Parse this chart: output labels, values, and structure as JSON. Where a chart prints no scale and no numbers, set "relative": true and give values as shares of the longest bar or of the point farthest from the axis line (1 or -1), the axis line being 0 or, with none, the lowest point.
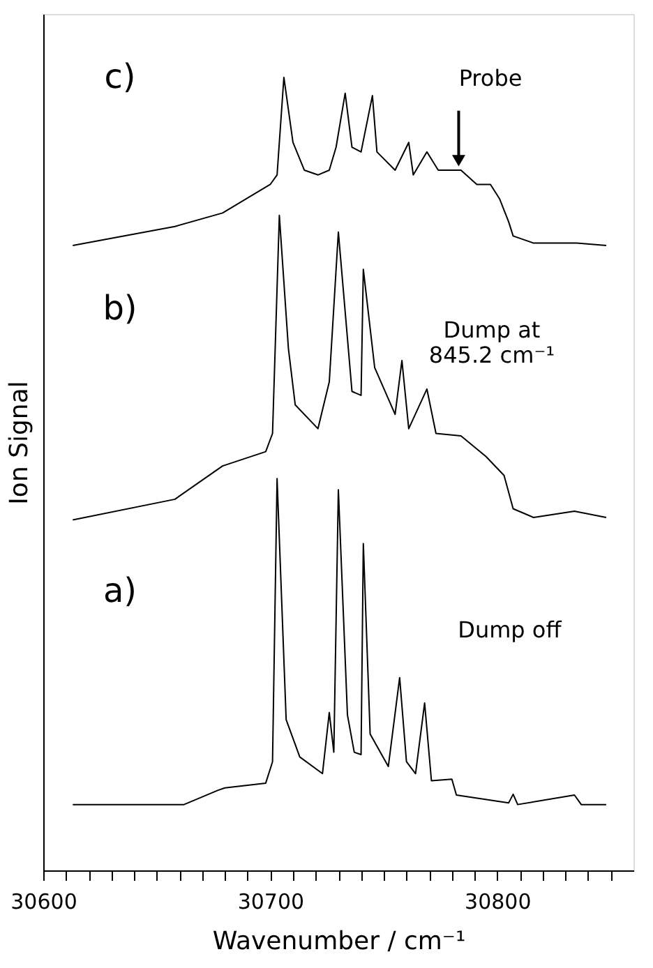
{
  "chart_data": {
    "type": "line",
    "relative": true,
    "xlabel": "Wavenumber / cm⁻¹",
    "ylabel": "Ion Signal",
    "xlim": [
      30600,
      30860
    ],
    "xticks": [
      30600,
      {
        "value": 30610,
        "label": null
      },
      {
        "value": 30620,
        "label": null
      },
      {
        "value": 30630,
        "label": null
      },
      {
        "value": 30640,
        "label": null
      },
      {
        "value": 30650,
        "label": null
      },
      {
        "value": 30660,
        "label": null
      },
      {
        "value": 30670,
        "label": null
      },
      {
        "value": 30680,
        "label": null
      },
      {
        "value": 30690,
        "label": null
      },
      30700,
      {
        "value": 30710,
        "label": null
      },
      {
        "value": 30720,
        "label": null
      },
      {
        "value": 30730,
        "label": null
      },
      {
        "value": 30740,
        "label": null
      },
      {
        "value": 30750,
        "label": null
      },
      {
        "value": 30760,
        "label": null
      },
      {
        "value": 30770,
        "label": null
      },
      {
        "value": 30780,
        "label": null
      },
      {
        "value": 30790,
        "label": null
      },
      30800,
      {
        "value": 30810,
        "label": null
      },
      {
        "value": 30820,
        "label": null
      },
      {
        "value": 30830,
        "label": null
      },
      {
        "value": 30840,
        "label": null
      },
      {
        "value": 30850,
        "label": null
      }
    ],
    "grid": false,
    "marker": "none",
    "line_style": "solid",
    "series": [
      {
        "color": "#000000",
        "x": [
          30613,
          30662,
          30677,
          30680,
          30698,
          30701,
          30703,
          30707,
          30713,
          30723,
          30726,
          30728,
          30730,
          30734,
          30737,
          30740,
          30741,
          30744,
          30752,
          30757,
          30760,
          30764,
          30768,
          30771,
          30780,
          30782,
          30805,
          30807,
          30809,
          30834,
          30837,
          30848
        ],
        "values": [
          0.083,
          0.083,
          0.101,
          0.104,
          0.11,
          0.137,
          0.494,
          0.19,
          0.143,
          0.122,
          0.199,
          0.149,
          0.48,
          0.196,
          0.149,
          0.146,
          0.412,
          0.172,
          0.131,
          0.243,
          0.137,
          0.122,
          0.211,
          0.113,
          0.115,
          0.095,
          0.085,
          0.096,
          0.083,
          0.095,
          0.083,
          0.083
        ]
      },
      {
        "color": "#000000",
        "x": [
          30613,
          30658,
          30679,
          30698,
          30701,
          30704,
          30708,
          30711,
          30721,
          30726,
          30730,
          30736,
          30740,
          30741,
          30746,
          30755,
          30758,
          30761,
          30769,
          30773,
          30784,
          30795,
          30803,
          30807,
          30816,
          30834,
          30848
        ],
        "values": [
          0.442,
          0.468,
          0.51,
          0.528,
          0.551,
          0.826,
          0.658,
          0.587,
          0.557,
          0.616,
          0.805,
          0.604,
          0.599,
          0.758,
          0.634,
          0.575,
          0.643,
          0.557,
          0.607,
          0.551,
          0.548,
          0.522,
          0.498,
          0.456,
          0.445,
          0.453,
          0.445
        ]
      },
      {
        "color": "#000000",
        "x": [
          30613,
          30658,
          30679,
          30700,
          30703,
          30706,
          30710,
          30715,
          30721,
          30726,
          30729,
          30733,
          30736,
          30740,
          30745,
          30747,
          30755,
          30761,
          30763,
          30769,
          30774,
          30784,
          30791,
          30797,
          30801,
          30805,
          30807,
          30816,
          30835,
          30848
        ],
        "values": [
          0.788,
          0.812,
          0.829,
          0.865,
          0.877,
          1.0,
          0.918,
          0.883,
          0.877,
          0.883,
          0.912,
          0.98,
          0.912,
          0.906,
          0.977,
          0.906,
          0.883,
          0.918,
          0.877,
          0.906,
          0.883,
          0.883,
          0.865,
          0.865,
          0.847,
          0.818,
          0.8,
          0.791,
          0.791,
          0.788
        ]
      }
    ],
    "annotations": [
      "c)",
      {
        "text": "Probe",
        "x": 30783,
        "y": 0.883
      },
      "b)",
      "Dump at\n845.2 cm⁻¹",
      "a)",
      "Dump off"
    ]
  }
}
